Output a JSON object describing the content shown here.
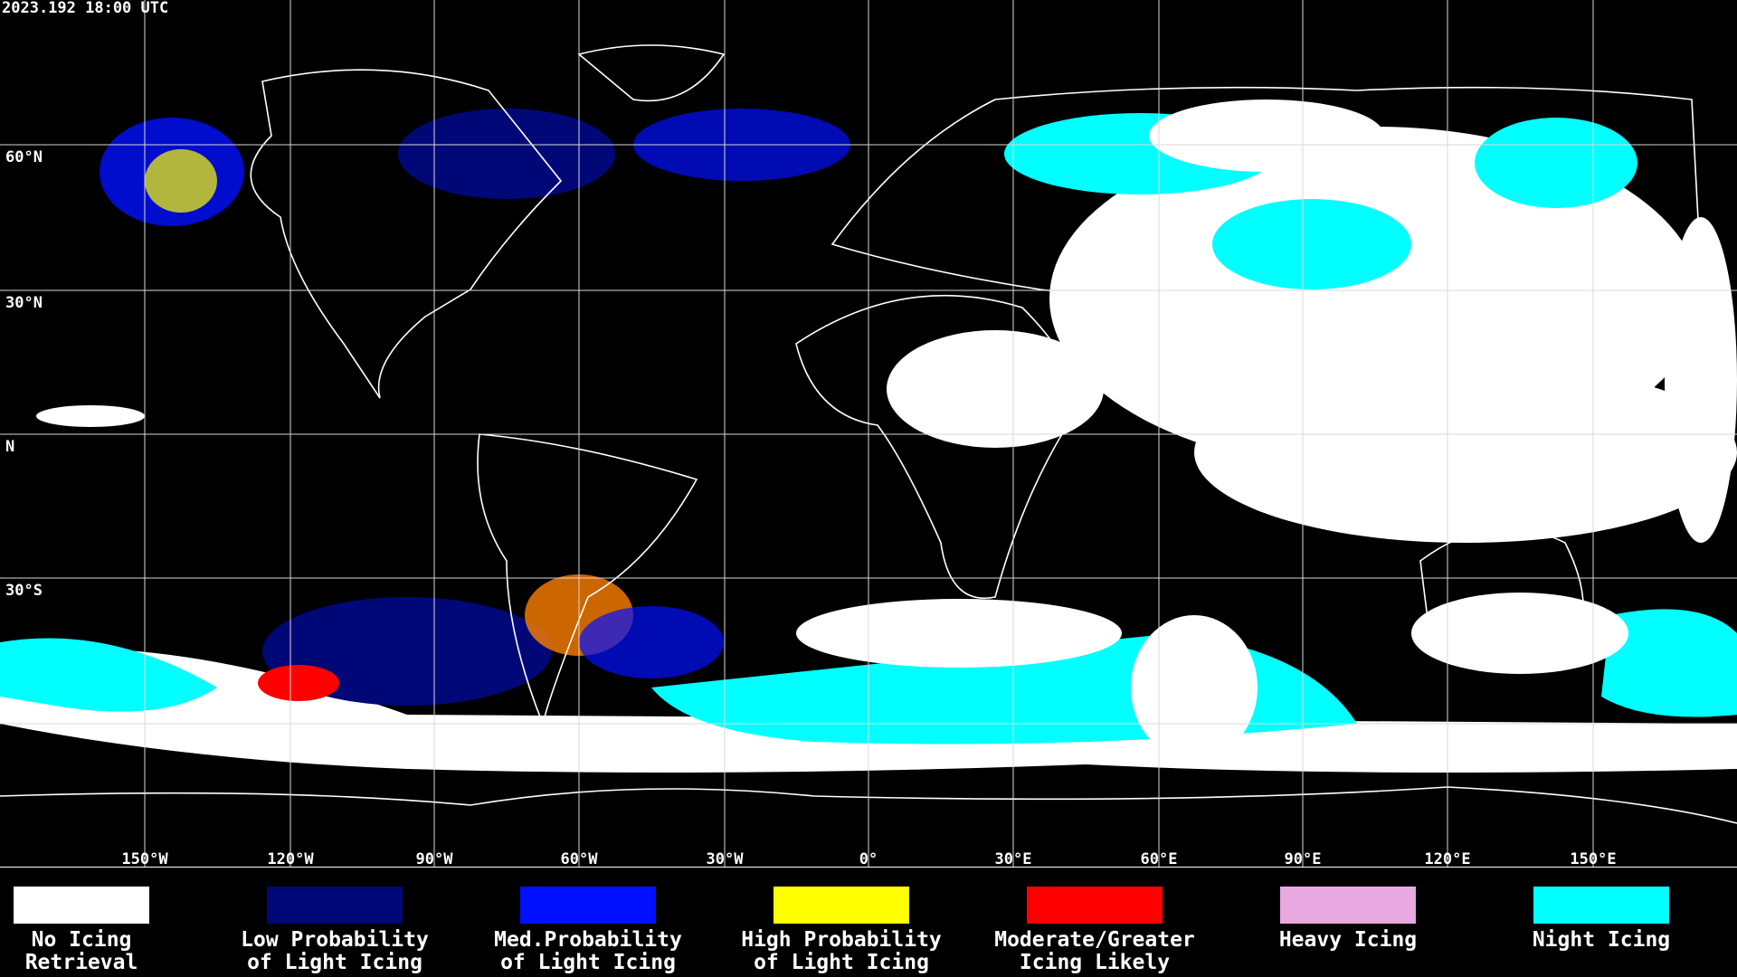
{
  "header": {
    "title": "2023.192 18:00 UTC"
  },
  "map": {
    "lat_labels": [
      "60°N",
      "30°N",
      "N",
      "30°S"
    ],
    "lon_labels": [
      "150°W",
      "120°W",
      "90°W",
      "60°W",
      "30°W",
      "0°",
      "30°E",
      "60°E",
      "90°E",
      "120°E",
      "150°E"
    ]
  },
  "legend": {
    "items": [
      {
        "label": [
          "No Icing",
          "Retrieval"
        ],
        "color": "#ffffff"
      },
      {
        "label": [
          "Low Probability",
          "of Light Icing"
        ],
        "color": "#000878"
      },
      {
        "label": [
          "Med.Probability",
          "of Light Icing"
        ],
        "color": "#0010ff"
      },
      {
        "label": [
          "High Probability",
          "of Light Icing"
        ],
        "color": "#ffff00"
      },
      {
        "label": [
          "Moderate/Greater",
          "Icing Likely"
        ],
        "color": "#ff0000"
      },
      {
        "label": [
          "Heavy Icing"
        ],
        "color": "#e8a8e0"
      },
      {
        "label": [
          "Night Icing"
        ],
        "color": "#00ffff"
      }
    ]
  }
}
